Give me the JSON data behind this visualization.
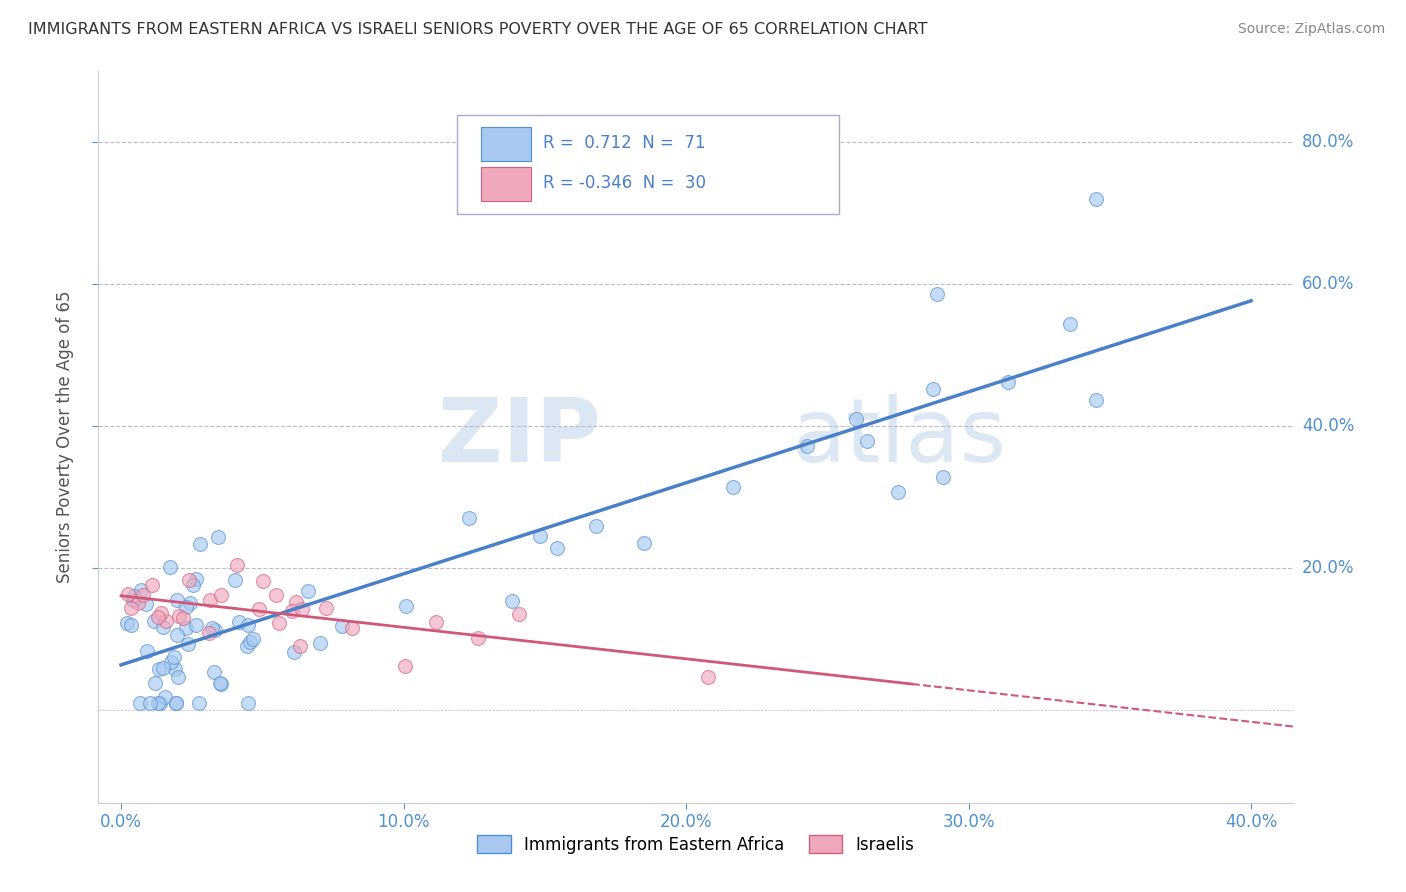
{
  "title": "IMMIGRANTS FROM EASTERN AFRICA VS ISRAELI SENIORS POVERTY OVER THE AGE OF 65 CORRELATION CHART",
  "source": "Source: ZipAtlas.com",
  "ylabel": "Seniors Poverty Over the Age of 65",
  "legend_label_blue": "Immigrants from Eastern Africa",
  "legend_label_pink": "Israelis",
  "R_blue": 0.712,
  "N_blue": 71,
  "R_pink": -0.346,
  "N_pink": 30,
  "xlim": [
    -0.008,
    0.415
  ],
  "ylim": [
    -0.13,
    0.9
  ],
  "xticks": [
    0.0,
    0.1,
    0.2,
    0.3,
    0.4
  ],
  "yticks": [
    0.2,
    0.4,
    0.6,
    0.8
  ],
  "color_blue": "#A8C8F0",
  "color_pink": "#F0A8BC",
  "edge_blue": "#5090D0",
  "edge_pink": "#D06080",
  "line_blue": "#4A80C8",
  "line_pink": "#D05878",
  "watermark_zip": "ZIP",
  "watermark_atlas": "atlas",
  "bg_color": "#FFFFFF"
}
